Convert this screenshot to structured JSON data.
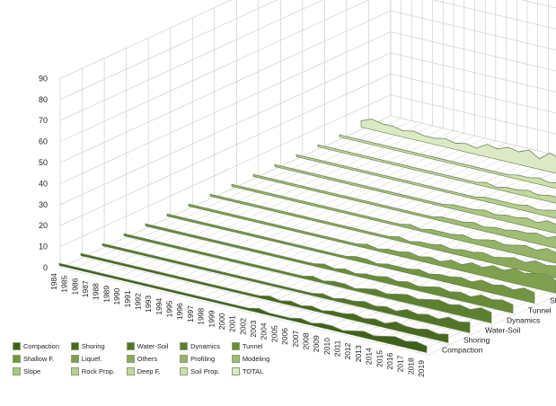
{
  "chart_data": {
    "type": "area",
    "title": "",
    "xlabel": "",
    "ylabel": "",
    "ylim": [
      0,
      90
    ],
    "yticks": [
      "0",
      "10",
      "20",
      "30",
      "40",
      "50",
      "60",
      "70",
      "80",
      "90"
    ],
    "categories": [
      "1984",
      "1985",
      "1986",
      "1987",
      "1988",
      "1989",
      "1990",
      "1991",
      "1992",
      "1993",
      "1994",
      "1995",
      "1996",
      "1997",
      "1998",
      "1999",
      "2000",
      "2001",
      "2002",
      "2003",
      "2004",
      "2005",
      "2006",
      "2007",
      "2008",
      "2009",
      "2010",
      "2011",
      "2012",
      "2013",
      "2014",
      "2015",
      "2016",
      "2017",
      "2018",
      "2019"
    ],
    "grid": true,
    "legend_position": "bottom-left",
    "series": [
      {
        "name": "Compaction",
        "color": "#3f5f1c",
        "values": [
          1,
          1,
          1,
          1,
          1,
          1,
          1,
          1,
          1,
          1,
          1,
          1,
          1,
          1,
          1,
          1,
          1,
          1,
          1,
          2,
          1,
          1,
          1,
          2,
          1,
          2,
          2,
          1,
          2,
          3,
          2,
          3,
          4,
          3,
          4,
          3
        ]
      },
      {
        "name": "Shoring",
        "color": "#48681f",
        "values": [
          1,
          1,
          1,
          1,
          1,
          1,
          1,
          1,
          1,
          1,
          1,
          1,
          1,
          1,
          1,
          1,
          1,
          1,
          2,
          1,
          2,
          1,
          2,
          1,
          2,
          2,
          3,
          2,
          3,
          2,
          4,
          3,
          3,
          4,
          3,
          4
        ]
      },
      {
        "name": "Water-Soil",
        "color": "#527428",
        "values": [
          1,
          1,
          1,
          1,
          1,
          1,
          1,
          1,
          1,
          1,
          1,
          1,
          1,
          1,
          1,
          1,
          1,
          1,
          1,
          1,
          1,
          2,
          1,
          2,
          2,
          3,
          2,
          3,
          2,
          4,
          3,
          4,
          3,
          5,
          4,
          5
        ]
      },
      {
        "name": "Dynamics",
        "color": "#5c8030",
        "values": [
          1,
          1,
          1,
          1,
          1,
          1,
          1,
          1,
          1,
          1,
          1,
          1,
          1,
          1,
          1,
          1,
          1,
          1,
          2,
          1,
          2,
          2,
          1,
          2,
          3,
          2,
          3,
          4,
          3,
          4,
          5,
          4,
          5,
          4,
          6,
          5
        ]
      },
      {
        "name": "Tunnel",
        "color": "#688b38",
        "values": [
          1,
          1,
          1,
          1,
          1,
          1,
          1,
          1,
          1,
          1,
          1,
          1,
          1,
          1,
          1,
          1,
          1,
          2,
          1,
          2,
          1,
          2,
          2,
          3,
          2,
          3,
          2,
          3,
          4,
          3,
          4,
          3,
          5,
          4,
          5,
          4
        ]
      },
      {
        "name": "Shallow F.",
        "color": "#739542",
        "values": [
          1,
          1,
          1,
          1,
          1,
          1,
          1,
          1,
          1,
          1,
          1,
          1,
          1,
          1,
          1,
          1,
          1,
          1,
          2,
          2,
          1,
          2,
          2,
          2,
          3,
          2,
          3,
          3,
          4,
          3,
          5,
          4,
          5,
          4,
          6,
          5
        ]
      },
      {
        "name": "Liquef.",
        "color": "#7fa04e",
        "values": [
          1,
          1,
          1,
          1,
          1,
          1,
          1,
          1,
          1,
          1,
          1,
          1,
          1,
          1,
          1,
          1,
          1,
          2,
          1,
          2,
          2,
          3,
          2,
          3,
          2,
          4,
          3,
          5,
          4,
          6,
          5,
          7,
          6,
          7,
          8,
          6
        ]
      },
      {
        "name": "Others",
        "color": "#8aaa5a",
        "values": [
          1,
          1,
          1,
          1,
          1,
          1,
          1,
          1,
          1,
          1,
          1,
          1,
          1,
          1,
          1,
          1,
          1,
          1,
          2,
          1,
          2,
          2,
          3,
          2,
          3,
          3,
          4,
          3,
          4,
          5,
          4,
          6,
          5,
          6,
          5,
          6
        ]
      },
      {
        "name": "Profiling",
        "color": "#95b467",
        "values": [
          1,
          1,
          1,
          1,
          1,
          1,
          1,
          1,
          1,
          1,
          1,
          1,
          1,
          1,
          1,
          1,
          1,
          2,
          1,
          2,
          2,
          2,
          3,
          2,
          3,
          4,
          3,
          4,
          5,
          4,
          6,
          5,
          6,
          7,
          6,
          7
        ]
      },
      {
        "name": "Modeling",
        "color": "#a0bd74",
        "values": [
          1,
          1,
          1,
          1,
          1,
          1,
          1,
          1,
          1,
          1,
          1,
          1,
          1,
          1,
          1,
          1,
          1,
          1,
          2,
          2,
          2,
          3,
          2,
          3,
          3,
          4,
          4,
          5,
          4,
          6,
          5,
          7,
          6,
          8,
          7,
          8
        ]
      },
      {
        "name": "Slope",
        "color": "#abc681",
        "values": [
          1,
          1,
          1,
          1,
          1,
          1,
          1,
          1,
          1,
          1,
          1,
          1,
          1,
          1,
          1,
          1,
          1,
          2,
          2,
          2,
          3,
          2,
          3,
          3,
          4,
          3,
          5,
          4,
          6,
          5,
          7,
          6,
          8,
          7,
          9,
          8
        ]
      },
      {
        "name": "Rock Prop.",
        "color": "#b6cf8f",
        "values": [
          1,
          1,
          1,
          1,
          1,
          1,
          1,
          1,
          1,
          1,
          1,
          1,
          1,
          1,
          1,
          1,
          1,
          1,
          2,
          2,
          2,
          2,
          3,
          2,
          3,
          4,
          3,
          4,
          5,
          4,
          5,
          6,
          5,
          7,
          6,
          7
        ]
      },
      {
        "name": "Deep F.",
        "color": "#c1d89d",
        "values": [
          1,
          1,
          1,
          1,
          1,
          1,
          1,
          1,
          1,
          1,
          1,
          1,
          1,
          1,
          1,
          1,
          2,
          1,
          2,
          2,
          3,
          2,
          3,
          3,
          4,
          4,
          5,
          5,
          6,
          6,
          7,
          8,
          7,
          9,
          8,
          10
        ]
      },
      {
        "name": "Soil Prop.",
        "color": "#cde1ac",
        "values": [
          1,
          1,
          1,
          1,
          1,
          1,
          1,
          1,
          1,
          1,
          1,
          1,
          1,
          1,
          1,
          1,
          1,
          2,
          2,
          3,
          2,
          3,
          3,
          4,
          3,
          5,
          4,
          6,
          5,
          7,
          6,
          8,
          9,
          8,
          10,
          9
        ]
      },
      {
        "name": "TOTAL",
        "color": "#dbeac5",
        "values": [
          3,
          5,
          4,
          4,
          3,
          4,
          3,
          3,
          4,
          3,
          4,
          3,
          6,
          5,
          7,
          6,
          8,
          5,
          9,
          7,
          8,
          9,
          10,
          9,
          11,
          8,
          12,
          10,
          34,
          26,
          36,
          20,
          46,
          61,
          36,
          58
        ]
      }
    ]
  }
}
